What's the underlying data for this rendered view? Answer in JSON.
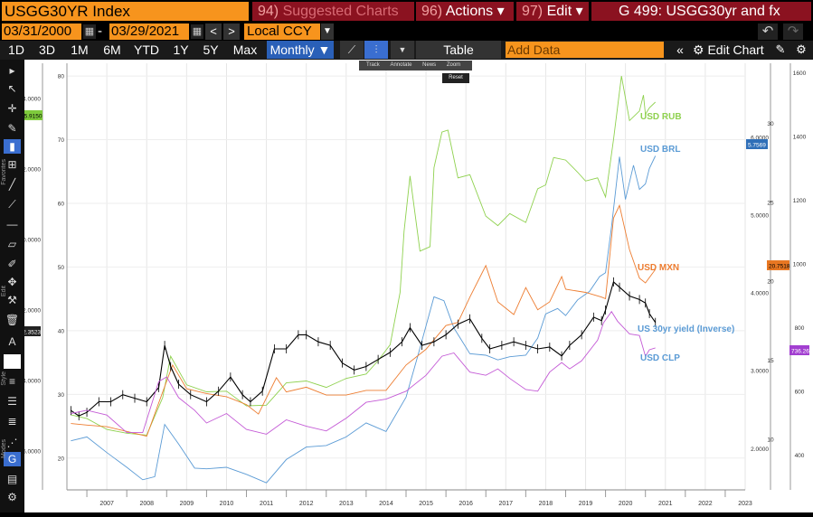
{
  "header": {
    "ticker": "USGG30YR Index",
    "menus": [
      {
        "num": "94)",
        "label": "Suggested Charts"
      },
      {
        "num": "96)",
        "label": "Actions ▾"
      },
      {
        "num": "97)",
        "label": "Edit ▾"
      }
    ],
    "title": "G 499: USGG30yr and fx"
  },
  "range": {
    "start": "03/31/2000",
    "end": "03/29/2021",
    "dash": "-",
    "currency": "Local CCY"
  },
  "periods": [
    "1D",
    "3D",
    "1M",
    "6M",
    "YTD",
    "1Y",
    "5Y",
    "Max"
  ],
  "frequency": "Monthly ▼",
  "toolbar": {
    "table_label": "Table",
    "add_data_placeholder": "Add Data",
    "edit_chart_label": "Edit Chart"
  },
  "sidebar": {
    "labels": [
      "Favorites",
      "Edit",
      "Style",
      "Modes"
    ]
  },
  "mini_tools": {
    "items": [
      "Track",
      "Annotate",
      "News",
      "Zoom"
    ],
    "reset": "Reset"
  },
  "colors": {
    "rub": "#8fd14f",
    "brl": "#5b9bd5",
    "mxn": "#ed7d31",
    "yield": "#000000",
    "clp": "#c45bd6",
    "orange_ui": "#f7941d",
    "menu_red": "#8b1220"
  },
  "chart_data": {
    "type": "line",
    "x_axis": {
      "tick_labels": [
        "2007",
        "2008",
        "2009",
        "2010",
        "2011",
        "2012",
        "2013",
        "2014",
        "2015",
        "2016",
        "2017",
        "2018",
        "2019",
        "2020",
        "2021",
        "2022",
        "2023"
      ],
      "range": [
        2006.5,
        2023.5
      ]
    },
    "left_axis_outer": {
      "tick_labels": [
        "4.0000",
        "2.0000",
        "0.0000",
        "-2.0000",
        "-4.0000",
        "-6.0000"
      ],
      "range": [
        -7.1,
        5.0
      ],
      "current_badge": "75.9150",
      "last_value_badge": "-2.3523"
    },
    "left_axis_inner": {
      "tick_labels": [
        "80",
        "70",
        "60",
        "50",
        "40",
        "30",
        "20"
      ],
      "range": [
        15,
        82
      ]
    },
    "right_axis_1": {
      "tick_labels": [
        "6.0000",
        "5.0000",
        "4.0000",
        "3.0000",
        "2.0000"
      ],
      "range": [
        1.47,
        6.95
      ],
      "last_value_badge": "5.7569"
    },
    "right_axis_2": {
      "tick_labels": [
        "30",
        "25",
        "20",
        "15",
        "10"
      ],
      "range": [
        6.8,
        33.8
      ],
      "last_value_badge": "20.7518"
    },
    "right_axis_3": {
      "tick_labels": [
        "1600",
        "1400",
        "1200",
        "1000",
        "800",
        "600",
        "400"
      ],
      "range": [
        290,
        1630
      ],
      "last_value_badge": "736.26"
    },
    "series": [
      {
        "name": "USD RUB",
        "axis": "left_axis_inner",
        "x": [
          2006.6,
          2007.0,
          2007.5,
          2008.0,
          2008.5,
          2008.9,
          2009.1,
          2009.5,
          2010.0,
          2010.5,
          2011.0,
          2011.5,
          2012.0,
          2012.5,
          2013.0,
          2013.5,
          2014.0,
          2014.3,
          2014.6,
          2014.85,
          2014.95,
          2015.1,
          2015.35,
          2015.6,
          2015.7,
          2015.9,
          2016.05,
          2016.3,
          2016.6,
          2017.0,
          2017.3,
          2017.6,
          2018.0,
          2018.3,
          2018.5,
          2018.7,
          2019.0,
          2019.3,
          2019.5,
          2019.8,
          2020.0,
          2020.2,
          2020.4,
          2020.6,
          2020.85,
          2020.95,
          2021.0,
          2021.1,
          2021.25
        ],
        "y": [
          26.8,
          26.2,
          24.5,
          23.9,
          23.6,
          29.5,
          36.0,
          31.5,
          30.4,
          30.5,
          28.2,
          28.3,
          31.8,
          32.1,
          31.1,
          32.5,
          33.2,
          35.3,
          37.8,
          46.0,
          55.6,
          64.3,
          52.5,
          53.2,
          65.6,
          71.2,
          71.5,
          64.0,
          64.5,
          58.0,
          56.5,
          58.4,
          57.0,
          62.3,
          62.9,
          67.2,
          66.8,
          64.9,
          63.5,
          64.0,
          61.0,
          70.0,
          80.0,
          73.0,
          74.5,
          77.0,
          74.0,
          75.0,
          75.9
        ]
      },
      {
        "name": "USD BRL",
        "axis": "right_axis_1",
        "x": [
          2006.6,
          2007.0,
          2007.5,
          2008.0,
          2008.4,
          2008.7,
          2008.95,
          2009.3,
          2009.7,
          2010.0,
          2010.5,
          2011.0,
          2011.5,
          2012.0,
          2012.5,
          2013.0,
          2013.5,
          2014.0,
          2014.5,
          2015.0,
          2015.3,
          2015.7,
          2015.95,
          2016.2,
          2016.6,
          2017.0,
          2017.3,
          2017.6,
          2018.0,
          2018.3,
          2018.5,
          2018.8,
          2019.0,
          2019.3,
          2019.6,
          2019.85,
          2020.0,
          2020.15,
          2020.35,
          2020.5,
          2020.7,
          2020.85,
          2021.0,
          2021.1,
          2021.25
        ],
        "y": [
          2.1,
          2.15,
          1.95,
          1.76,
          1.6,
          1.64,
          2.31,
          2.06,
          1.75,
          1.74,
          1.76,
          1.67,
          1.56,
          1.86,
          2.02,
          2.04,
          2.15,
          2.33,
          2.22,
          2.66,
          3.2,
          3.95,
          3.9,
          3.55,
          3.22,
          3.2,
          3.14,
          3.18,
          3.2,
          3.42,
          3.73,
          3.8,
          3.71,
          3.91,
          4.02,
          4.21,
          4.26,
          4.85,
          5.75,
          5.2,
          5.64,
          5.33,
          5.4,
          5.6,
          5.76
        ]
      },
      {
        "name": "USD MXN",
        "axis": "right_axis_2",
        "x": [
          2006.6,
          2007.0,
          2007.5,
          2008.0,
          2008.5,
          2008.9,
          2009.15,
          2009.5,
          2010.0,
          2010.5,
          2011.0,
          2011.3,
          2011.75,
          2012.0,
          2012.5,
          2013.0,
          2013.5,
          2014.0,
          2014.5,
          2015.0,
          2015.5,
          2016.0,
          2016.3,
          2016.6,
          2016.9,
          2017.0,
          2017.3,
          2017.7,
          2018.0,
          2018.3,
          2018.6,
          2018.9,
          2019.0,
          2019.5,
          2019.9,
          2020.0,
          2020.2,
          2020.35,
          2020.6,
          2020.85,
          2021.0,
          2021.25
        ],
        "y": [
          11.0,
          10.9,
          10.8,
          10.5,
          10.2,
          13.0,
          14.7,
          13.2,
          12.9,
          12.7,
          12.2,
          11.6,
          13.9,
          13.0,
          13.3,
          12.8,
          12.8,
          13.1,
          13.1,
          14.7,
          15.7,
          17.2,
          17.4,
          19.0,
          20.5,
          21.0,
          18.7,
          17.9,
          19.6,
          18.2,
          18.7,
          20.3,
          19.5,
          19.3,
          19.0,
          18.9,
          24.0,
          24.8,
          22.0,
          20.2,
          19.9,
          20.75
        ]
      },
      {
        "name": "US 30yr yield (Inverse)",
        "axis": "left_axis_outer",
        "x": [
          2006.6,
          2006.8,
          2007.0,
          2007.3,
          2007.6,
          2007.9,
          2008.2,
          2008.5,
          2008.8,
          2008.95,
          2009.1,
          2009.3,
          2009.6,
          2010.0,
          2010.3,
          2010.6,
          2010.9,
          2011.1,
          2011.4,
          2011.7,
          2012.0,
          2012.3,
          2012.5,
          2012.8,
          2013.1,
          2013.4,
          2013.7,
          2014.0,
          2014.3,
          2014.6,
          2014.9,
          2015.1,
          2015.4,
          2015.7,
          2016.0,
          2016.3,
          2016.6,
          2016.9,
          2017.1,
          2017.4,
          2017.7,
          2018.0,
          2018.3,
          2018.6,
          2018.9,
          2019.1,
          2019.4,
          2019.7,
          2019.9,
          2020.0,
          2020.2,
          2020.35,
          2020.6,
          2020.85,
          2021.0,
          2021.1,
          2021.25
        ],
        "y": [
          -4.85,
          -5.0,
          -4.9,
          -4.6,
          -4.6,
          -4.4,
          -4.5,
          -4.6,
          -4.2,
          -3.0,
          -3.6,
          -4.1,
          -4.4,
          -4.6,
          -4.3,
          -3.9,
          -4.4,
          -4.6,
          -4.3,
          -3.1,
          -3.1,
          -2.7,
          -2.7,
          -2.9,
          -3.0,
          -3.5,
          -3.7,
          -3.6,
          -3.4,
          -3.2,
          -2.9,
          -2.5,
          -3.0,
          -2.9,
          -2.7,
          -2.4,
          -2.25,
          -2.8,
          -3.1,
          -3.0,
          -2.9,
          -3.0,
          -3.1,
          -3.05,
          -3.3,
          -3.0,
          -2.7,
          -2.2,
          -2.3,
          -2.0,
          -1.2,
          -1.35,
          -1.6,
          -1.7,
          -1.8,
          -2.1,
          -2.35
        ]
      },
      {
        "name": "USD CLP",
        "axis": "right_axis_3",
        "x": [
          2006.6,
          2007.0,
          2007.5,
          2008.0,
          2008.4,
          2008.8,
          2009.0,
          2009.3,
          2009.7,
          2010.0,
          2010.5,
          2011.0,
          2011.5,
          2012.0,
          2012.5,
          2013.0,
          2013.5,
          2014.0,
          2014.5,
          2015.0,
          2015.5,
          2015.9,
          2016.2,
          2016.6,
          2017.0,
          2017.3,
          2017.6,
          2018.0,
          2018.3,
          2018.6,
          2018.9,
          2019.1,
          2019.4,
          2019.8,
          2019.95,
          2020.15,
          2020.3,
          2020.6,
          2020.85,
          2021.0,
          2021.1,
          2021.25
        ],
        "y": [
          530,
          540,
          525,
          470,
          470,
          630,
          645,
          580,
          540,
          500,
          530,
          480,
          465,
          510,
          490,
          475,
          515,
          565,
          575,
          600,
          650,
          710,
          720,
          660,
          650,
          670,
          640,
          605,
          600,
          660,
          690,
          670,
          695,
          760,
          815,
          850,
          820,
          780,
          775,
          710,
          730,
          736
        ]
      }
    ],
    "series_labels": [
      "USD RUB",
      "USD BRL",
      "USD MXN",
      "US 30yr yield (Inverse)",
      "USD CLP"
    ],
    "grid": true
  }
}
